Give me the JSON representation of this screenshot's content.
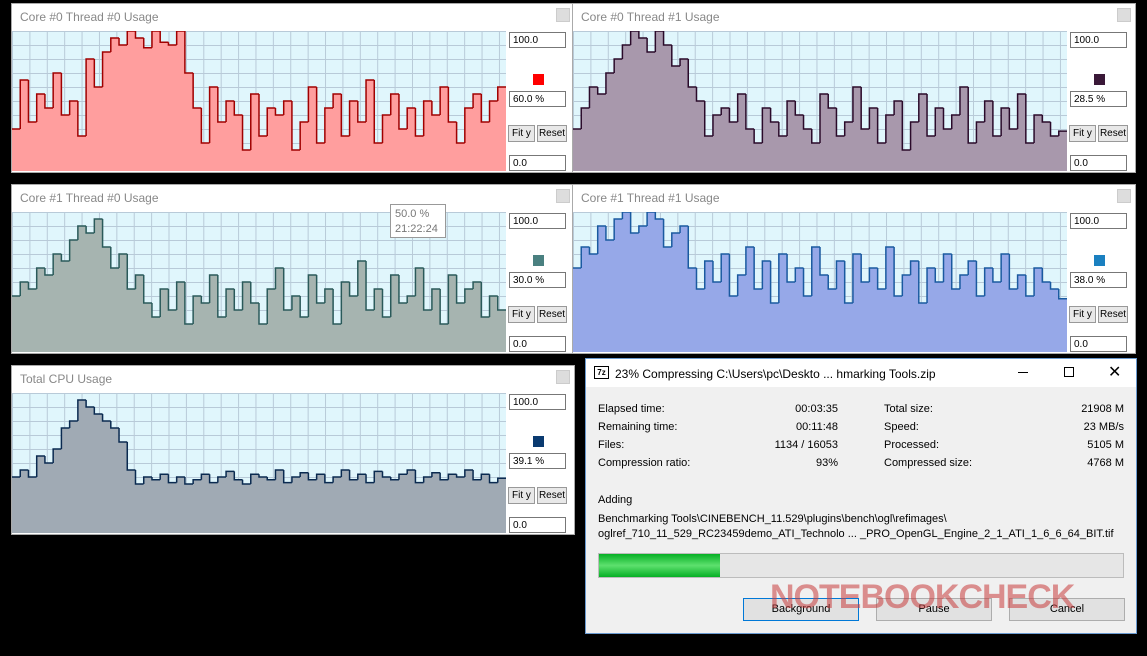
{
  "panels": [
    {
      "title": "Core #0 Thread #0 Usage",
      "max": "100.0",
      "current": "60.0 %",
      "min": "0.0",
      "fit": "Fit y",
      "reset": "Reset",
      "color": "#ff0000",
      "fill": "#ff9e9e",
      "stroke": "#a00000",
      "values": [
        30,
        65,
        35,
        55,
        45,
        70,
        40,
        50,
        25,
        80,
        60,
        85,
        95,
        90,
        100,
        95,
        88,
        100,
        92,
        90,
        100,
        70,
        45,
        20,
        60,
        35,
        50,
        40,
        15,
        55,
        25,
        45,
        40,
        50,
        15,
        35,
        60,
        20,
        45,
        55,
        25,
        50,
        35,
        65,
        20,
        40,
        55,
        30,
        45,
        25,
        50,
        40,
        60,
        35,
        20,
        45,
        55,
        35,
        50,
        60
      ]
    },
    {
      "title": "Core #0 Thread #1 Usage",
      "max": "100.0",
      "current": "28.5 %",
      "min": "0.0",
      "fit": "Fit y",
      "reset": "Reset",
      "color": "#3a1838",
      "fill": "#a898ac",
      "stroke": "#2a0a2a",
      "values": [
        30,
        45,
        60,
        55,
        70,
        80,
        90,
        100,
        95,
        85,
        100,
        90,
        75,
        80,
        60,
        50,
        25,
        40,
        45,
        35,
        55,
        30,
        20,
        45,
        35,
        25,
        50,
        40,
        30,
        20,
        55,
        45,
        25,
        35,
        60,
        30,
        45,
        20,
        40,
        50,
        15,
        35,
        55,
        25,
        45,
        30,
        40,
        60,
        20,
        35,
        50,
        25,
        45,
        30,
        55,
        20,
        40,
        35,
        25,
        28.5
      ]
    },
    {
      "title": "Core #1 Thread #0 Usage",
      "max": "100.0",
      "current": "30.0 %",
      "min": "0.0",
      "fit": "Fit y",
      "reset": "Reset",
      "color": "#4a8080",
      "fill": "#a6b4b0",
      "stroke": "#2a5a5a",
      "values": [
        40,
        50,
        45,
        60,
        55,
        70,
        65,
        80,
        90,
        85,
        95,
        75,
        60,
        70,
        45,
        55,
        35,
        25,
        45,
        30,
        50,
        20,
        40,
        35,
        55,
        25,
        45,
        30,
        50,
        35,
        20,
        45,
        60,
        30,
        40,
        25,
        55,
        35,
        45,
        20,
        50,
        40,
        65,
        30,
        45,
        25,
        55,
        35,
        40,
        60,
        30,
        45,
        20,
        55,
        35,
        45,
        50,
        25,
        40,
        30
      ]
    },
    {
      "title": "Core #1 Thread #1 Usage",
      "max": "100.0",
      "current": "38.0 %",
      "min": "0.0",
      "fit": "Fit y",
      "reset": "Reset",
      "color": "#1a80c0",
      "fill": "#96a8e8",
      "stroke": "#1a5aa0",
      "values": [
        60,
        75,
        70,
        90,
        80,
        95,
        100,
        85,
        90,
        100,
        95,
        75,
        85,
        90,
        60,
        45,
        65,
        50,
        70,
        40,
        55,
        75,
        45,
        65,
        35,
        70,
        50,
        60,
        40,
        75,
        55,
        45,
        65,
        35,
        70,
        50,
        60,
        45,
        75,
        40,
        55,
        65,
        35,
        60,
        50,
        70,
        45,
        55,
        65,
        40,
        60,
        50,
        70,
        45,
        55,
        40,
        60,
        50,
        45,
        38
      ]
    },
    {
      "title": "Total CPU Usage",
      "max": "100.0",
      "current": "39.1 %",
      "min": "0.0",
      "fit": "Fit y",
      "reset": "Reset",
      "color": "#0a3a70",
      "fill": "#a0aab4",
      "stroke": "#0a2a50",
      "values": [
        40,
        45,
        40,
        55,
        50,
        60,
        75,
        80,
        95,
        90,
        85,
        80,
        75,
        65,
        45,
        35,
        40,
        38,
        42,
        36,
        40,
        35,
        38,
        42,
        36,
        40,
        44,
        38,
        35,
        42,
        40,
        38,
        45,
        36,
        40,
        43,
        38,
        42,
        36,
        40,
        45,
        38,
        42,
        36,
        44,
        40,
        38,
        42,
        45,
        36,
        40,
        43,
        38,
        42,
        40,
        45,
        38,
        42,
        36,
        39.1
      ]
    }
  ],
  "tooltip": {
    "value": "50.0 %",
    "time": "21:22:24"
  },
  "dialog": {
    "icon": "7z",
    "title": "23% Compressing C:\\Users\\pc\\Deskto ... hmarking Tools.zip",
    "progress": 23,
    "left": [
      {
        "label": "Elapsed time:",
        "value": "00:03:35"
      },
      {
        "label": "Remaining time:",
        "value": "00:11:48"
      },
      {
        "label": "Files:",
        "value": "1134 / 16053"
      },
      {
        "label": "Compression ratio:",
        "value": "93%"
      }
    ],
    "right": [
      {
        "label": "Total size:",
        "value": "21908 M"
      },
      {
        "label": "Speed:",
        "value": "23 MB/s"
      },
      {
        "label": "Processed:",
        "value": "5105 M"
      },
      {
        "label": "Compressed size:",
        "value": "4768 M"
      }
    ],
    "status": "Adding",
    "path1": "Benchmarking Tools\\CINEBENCH_11.529\\plugins\\bench\\ogl\\refimages\\",
    "path2": "oglref_710_11_529_RC23459demo_ATI_Technolo ... _PRO_OpenGL_Engine_2_1_ATI_1_6_6_64_BIT.tif",
    "buttons": [
      "Background",
      "Pause",
      "Cancel"
    ]
  },
  "watermark": "NOTEBOOKCHECK"
}
